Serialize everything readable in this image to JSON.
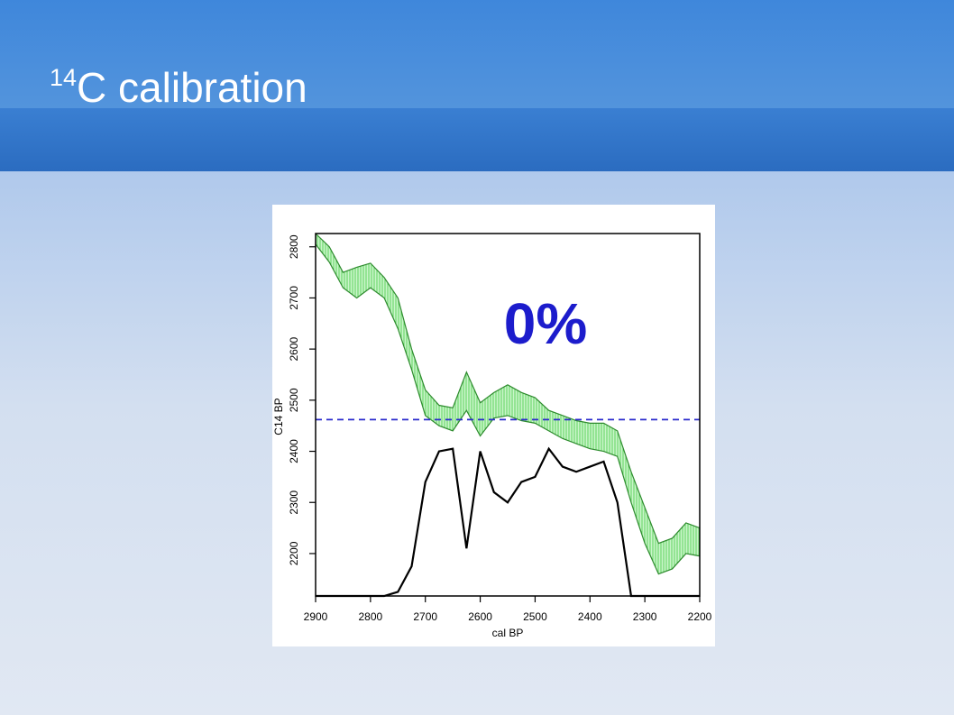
{
  "slide": {
    "title_superscript": "14",
    "title": "C calibration"
  },
  "chart_data": {
    "type": "line",
    "x_label": "cal BP",
    "y_label": "C14 BP",
    "annotation": "0%",
    "annotation_color": "#1c1ccc",
    "x": [
      2900,
      2875,
      2850,
      2825,
      2800,
      2775,
      2750,
      2725,
      2700,
      2675,
      2650,
      2625,
      2600,
      2575,
      2550,
      2525,
      2500,
      2475,
      2450,
      2425,
      2400,
      2375,
      2350,
      2325,
      2300,
      2275,
      2250,
      2225,
      2200
    ],
    "series": [
      {
        "color": "#2e8b2e",
        "values": [
          2826,
          2800,
          2750,
          2760,
          2768,
          2740,
          2700,
          2600,
          2520,
          2490,
          2485,
          2555,
          2495,
          2515,
          2530,
          2515,
          2505,
          2480,
          2470,
          2460,
          2455,
          2455,
          2440,
          2360,
          2290,
          2220,
          2230,
          2260,
          2250
        ]
      },
      {
        "color": "#2e8b2e",
        "values": [
          2805,
          2770,
          2720,
          2700,
          2720,
          2700,
          2640,
          2560,
          2470,
          2450,
          2440,
          2480,
          2430,
          2465,
          2470,
          2460,
          2455,
          2440,
          2425,
          2415,
          2405,
          2400,
          2390,
          2300,
          2220,
          2160,
          2170,
          2200,
          2195
        ]
      },
      {
        "color": "#000000",
        "values": [
          2117,
          2117,
          2117,
          2117,
          2117,
          2117,
          2125,
          2175,
          2340,
          2400,
          2405,
          2210,
          2400,
          2320,
          2300,
          2340,
          2350,
          2405,
          2370,
          2360,
          2370,
          2380,
          2300,
          2117,
          2117,
          2117,
          2117,
          2117,
          2117
        ]
      }
    ],
    "band_color": "#8fe88f",
    "reference_line": {
      "value": 2462,
      "color": "#2a2acc"
    },
    "xlim": [
      2900,
      2200
    ],
    "xticks": [
      2900,
      2800,
      2700,
      2600,
      2500,
      2400,
      2300,
      2200
    ],
    "ylim": [
      2117,
      2826
    ],
    "yticks": [
      2200,
      2300,
      2400,
      2500,
      2600,
      2700,
      2800
    ]
  }
}
